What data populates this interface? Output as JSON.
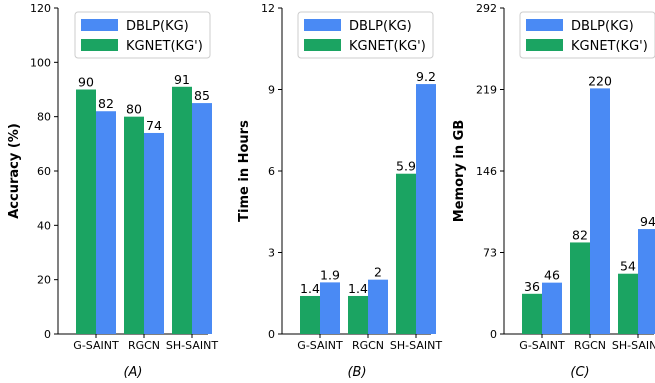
{
  "chart_data": [
    {
      "type": "bar",
      "panel_caption": "(A)",
      "categories": [
        "G-SAINT",
        "RGCN",
        "SH-SAINT"
      ],
      "series": [
        {
          "name": "KGNET(KG')",
          "values": [
            90,
            80,
            91
          ],
          "color": "#1ba462"
        },
        {
          "name": "DBLP(KG)",
          "values": [
            82,
            74,
            85
          ],
          "color": "#4a8af4"
        }
      ],
      "value_labels": [
        [
          "90",
          "80",
          "91"
        ],
        [
          "82",
          "74",
          "85"
        ]
      ],
      "title": "",
      "xlabel": "",
      "ylabel": "Accuracy (%)",
      "ylim": [
        0,
        120
      ],
      "yticks": [
        0,
        20,
        40,
        60,
        80,
        100,
        120
      ],
      "grid": false,
      "legend": "top-center"
    },
    {
      "type": "bar",
      "panel_caption": "(B)",
      "categories": [
        "G-SAINT",
        "RGCN",
        "SH-SAINT"
      ],
      "series": [
        {
          "name": "KGNET(KG')",
          "values": [
            1.4,
            1.4,
            5.9
          ],
          "color": "#1ba462"
        },
        {
          "name": "DBLP(KG)",
          "values": [
            1.9,
            2,
            9.2
          ],
          "color": "#4a8af4"
        }
      ],
      "value_labels": [
        [
          "1.4",
          "1.4",
          "5.9"
        ],
        [
          "1.9",
          "2",
          "9.2"
        ]
      ],
      "title": "",
      "xlabel": "",
      "ylabel": "Time in Hours",
      "ylim": [
        0,
        12
      ],
      "yticks": [
        0,
        3,
        6,
        9,
        12
      ],
      "grid": false,
      "legend": "top-center"
    },
    {
      "type": "bar",
      "panel_caption": "(C)",
      "categories": [
        "G-SAINT",
        "RGCN",
        "SH-SAINT"
      ],
      "series": [
        {
          "name": "KGNET(KG')",
          "values": [
            36,
            82,
            54
          ],
          "color": "#1ba462"
        },
        {
          "name": "DBLP(KG)",
          "values": [
            46,
            220,
            94
          ],
          "color": "#4a8af4"
        }
      ],
      "value_labels": [
        [
          "36",
          "82",
          "54"
        ],
        [
          "46",
          "220",
          "94"
        ]
      ],
      "title": "",
      "xlabel": "",
      "ylabel": "Memory in GB",
      "ylim": [
        0,
        292
      ],
      "yticks": [
        0,
        73,
        146,
        219,
        292
      ],
      "grid": false,
      "legend": "top-center"
    }
  ],
  "legend_entries": [
    {
      "label": "DBLP(KG)",
      "color": "#4a8af4"
    },
    {
      "label": "KGNET(KG')",
      "color": "#1ba462"
    }
  ]
}
